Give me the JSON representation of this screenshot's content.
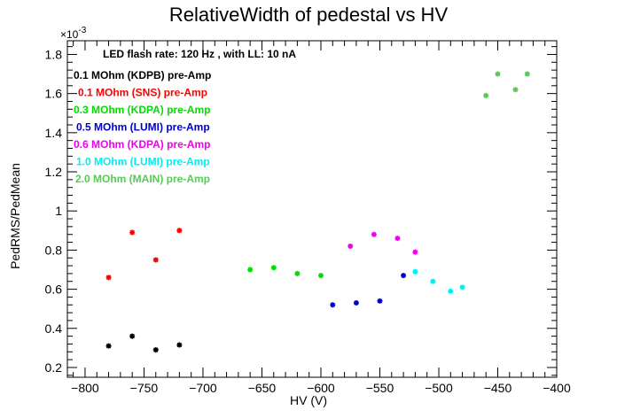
{
  "chart_data": {
    "type": "scatter",
    "title": "RelativeWidth of pedestal vs HV",
    "xlabel": "HV (V)",
    "ylabel": "PedRMS/PedMean",
    "y_exponent_base": "×10",
    "y_exponent_power": "-3",
    "annotation": "LED flash rate: 120 Hz , with LL: 10 nA",
    "xlim": [
      -815,
      -400
    ],
    "ylim": [
      0.15,
      1.87
    ],
    "y_unit_scale": 0.001,
    "x_ticks": [
      -800,
      -750,
      -700,
      -650,
      -600,
      -550,
      -500,
      -450,
      -400
    ],
    "x_tick_labels": [
      "−800",
      "−750",
      "−700",
      "−650",
      "−600",
      "−550",
      "−500",
      "−450",
      "−400"
    ],
    "y_ticks": [
      0.2,
      0.4,
      0.6,
      0.8,
      1.0,
      1.2,
      1.4,
      1.6,
      1.8
    ],
    "y_tick_labels": [
      "0.2",
      "0.4",
      "0.6",
      "0.8",
      "1",
      "1.2",
      "1.4",
      "1.6",
      "1.8"
    ],
    "grid": false,
    "legend_position": "top-left",
    "series": [
      {
        "name": "0.1 MOhm (KDPB) pre-Amp",
        "color": "#000000",
        "x": [
          -780,
          -760,
          -740,
          -720
        ],
        "y": [
          0.31,
          0.36,
          0.29,
          0.315
        ]
      },
      {
        "name": "0.1 MOhm (SNS) pre-Amp",
        "color": "#ff0000",
        "x": [
          -780,
          -760,
          -740,
          -720
        ],
        "y": [
          0.66,
          0.89,
          0.75,
          0.9
        ]
      },
      {
        "name": "0.3 MOhm (KDPA) pre-Amp",
        "color": "#00dd00",
        "x": [
          -660,
          -640,
          -620,
          -600
        ],
        "y": [
          0.7,
          0.71,
          0.68,
          0.67
        ]
      },
      {
        "name": "0.5 MOhm (LUMI) pre-Amp",
        "color": "#0000cc",
        "x": [
          -590,
          -570,
          -550,
          -530
        ],
        "y": [
          0.52,
          0.53,
          0.54,
          0.67
        ]
      },
      {
        "name": "0.6 MOhm (KDPA) pre-Amp",
        "color": "#ee00ee",
        "x": [
          -575,
          -555,
          -535,
          -520
        ],
        "y": [
          0.82,
          0.88,
          0.86,
          0.79
        ]
      },
      {
        "name": "1.0 MOhm (LUMI) pre-Amp",
        "color": "#00eeee",
        "x": [
          -520,
          -505,
          -490,
          -480
        ],
        "y": [
          0.69,
          0.64,
          0.59,
          0.61
        ]
      },
      {
        "name": "2.0 MOhm (MAIN) pre-Amp",
        "color": "#55cc55",
        "x": [
          -460,
          -450,
          -435,
          -425
        ],
        "y": [
          1.59,
          1.7,
          1.62,
          1.7
        ]
      }
    ]
  }
}
